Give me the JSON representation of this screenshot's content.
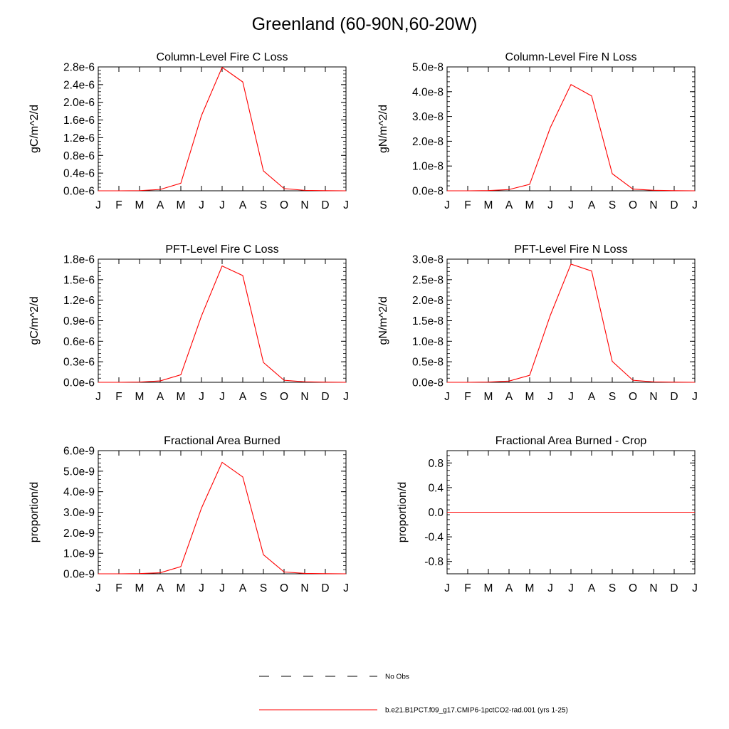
{
  "page": {
    "title": "Greenland (60-90N,60-20W)"
  },
  "legend": [
    {
      "label": "No Obs",
      "color": "#000000",
      "style": "dashed"
    },
    {
      "label": "b.e21.B1PCT.f09_g17.CMIP6-1pctCO2-rad.001 (yrs 1-25)",
      "color": "#ff0000",
      "style": "solid"
    }
  ],
  "chart_data": [
    {
      "type": "line",
      "title": "Column-Level Fire C Loss",
      "ylabel": "gC/m^2/d",
      "x": [
        "J",
        "F",
        "M",
        "A",
        "M",
        "J",
        "J",
        "A",
        "S",
        "O",
        "N",
        "D",
        "J"
      ],
      "ylim": [
        0,
        2.8e-06
      ],
      "yticks": [
        0,
        4e-07,
        8e-07,
        1.2e-06,
        1.6e-06,
        2e-06,
        2.4e-06,
        2.8e-06
      ],
      "yticklabels": [
        "0.0e-6",
        "0.4e-6",
        "0.8e-6",
        "1.2e-6",
        "1.6e-6",
        "2.0e-6",
        "2.4e-6",
        "2.8e-6"
      ],
      "series": [
        {
          "color": "#ff0000",
          "values": [
            0,
            0,
            4e-09,
            3e-08,
            1.7e-07,
            1.7e-06,
            2.79e-06,
            2.46e-06,
            4.5e-07,
            5e-08,
            1e-08,
            3e-09,
            0
          ]
        }
      ]
    },
    {
      "type": "line",
      "title": "Column-Level Fire N Loss",
      "ylabel": "gN/m^2/d",
      "x": [
        "J",
        "F",
        "M",
        "A",
        "M",
        "J",
        "J",
        "A",
        "S",
        "O",
        "N",
        "D",
        "J"
      ],
      "ylim": [
        0,
        5e-08
      ],
      "yticks": [
        0,
        1e-08,
        2e-08,
        3e-08,
        4e-08,
        5e-08
      ],
      "yticklabels": [
        "0.0e-8",
        "1.0e-8",
        "2.0e-8",
        "3.0e-8",
        "4.0e-8",
        "5.0e-8"
      ],
      "series": [
        {
          "color": "#ff0000",
          "values": [
            0,
            0,
            1e-10,
            5e-10,
            2.6e-09,
            2.55e-08,
            4.29e-08,
            3.83e-08,
            6.9e-09,
            7e-10,
            2e-10,
            5e-11,
            0
          ]
        }
      ]
    },
    {
      "type": "line",
      "title": "PFT-Level Fire C Loss",
      "ylabel": "gC/m^2/d",
      "x": [
        "J",
        "F",
        "M",
        "A",
        "M",
        "J",
        "J",
        "A",
        "S",
        "O",
        "N",
        "D",
        "J"
      ],
      "ylim": [
        0,
        1.8e-06
      ],
      "yticks": [
        0,
        3e-07,
        6e-07,
        9e-07,
        1.2e-06,
        1.5e-06,
        1.8e-06
      ],
      "yticklabels": [
        "0.0e-6",
        "0.3e-6",
        "0.6e-6",
        "0.9e-6",
        "1.2e-6",
        "1.5e-6",
        "1.8e-6"
      ],
      "series": [
        {
          "color": "#ff0000",
          "values": [
            0,
            0,
            3e-09,
            2e-08,
            1.1e-07,
            9.7e-07,
            1.7e-06,
            1.56e-06,
            2.9e-07,
            3e-08,
            7e-09,
            2e-09,
            0
          ]
        }
      ]
    },
    {
      "type": "line",
      "title": "PFT-Level Fire N Loss",
      "ylabel": "gN/m^2/d",
      "x": [
        "J",
        "F",
        "M",
        "A",
        "M",
        "J",
        "J",
        "A",
        "S",
        "O",
        "N",
        "D",
        "J"
      ],
      "ylim": [
        0,
        3e-08
      ],
      "yticks": [
        0,
        5e-09,
        1e-08,
        1.5e-08,
        2e-08,
        2.5e-08,
        3e-08
      ],
      "yticklabels": [
        "0.0e-8",
        "0.5e-8",
        "1.0e-8",
        "1.5e-8",
        "2.0e-8",
        "2.5e-8",
        "3.0e-8"
      ],
      "series": [
        {
          "color": "#ff0000",
          "values": [
            0,
            0,
            6e-11,
            3e-10,
            1.7e-09,
            1.63e-08,
            2.88e-08,
            2.71e-08,
            5.1e-09,
            5e-10,
            1e-10,
            3e-11,
            0
          ]
        }
      ]
    },
    {
      "type": "line",
      "title": "Fractional Area Burned",
      "ylabel": "proportion/d",
      "x": [
        "J",
        "F",
        "M",
        "A",
        "M",
        "J",
        "J",
        "A",
        "S",
        "O",
        "N",
        "D",
        "J"
      ],
      "ylim": [
        0,
        6e-09
      ],
      "yticks": [
        0,
        1e-09,
        2e-09,
        3e-09,
        4e-09,
        5e-09,
        6e-09
      ],
      "yticklabels": [
        "0.0e-9",
        "1.0e-9",
        "2.0e-9",
        "3.0e-9",
        "4.0e-9",
        "5.0e-9",
        "6.0e-9"
      ],
      "series": [
        {
          "color": "#ff0000",
          "values": [
            0,
            0,
            1e-11,
            5e-11,
            3.5e-10,
            3.2e-09,
            5.43e-09,
            4.72e-09,
            9.3e-10,
            9e-11,
            2e-11,
            5e-12,
            0
          ]
        }
      ]
    },
    {
      "type": "line",
      "title": "Fractional Area Burned - Crop",
      "ylabel": "proportion/d",
      "x": [
        "J",
        "F",
        "M",
        "A",
        "M",
        "J",
        "J",
        "A",
        "S",
        "O",
        "N",
        "D",
        "J"
      ],
      "ylim": [
        -1.0,
        1.0
      ],
      "yticks": [
        -0.8,
        -0.4,
        0.0,
        0.4,
        0.8
      ],
      "yticklabels": [
        "-0.8",
        "-0.4",
        "0.0",
        "0.4",
        "0.8"
      ],
      "series": [
        {
          "color": "#ff0000",
          "values": [
            0,
            0,
            0,
            0,
            0,
            0,
            0,
            0,
            0,
            0,
            0,
            0,
            0
          ]
        }
      ]
    }
  ]
}
